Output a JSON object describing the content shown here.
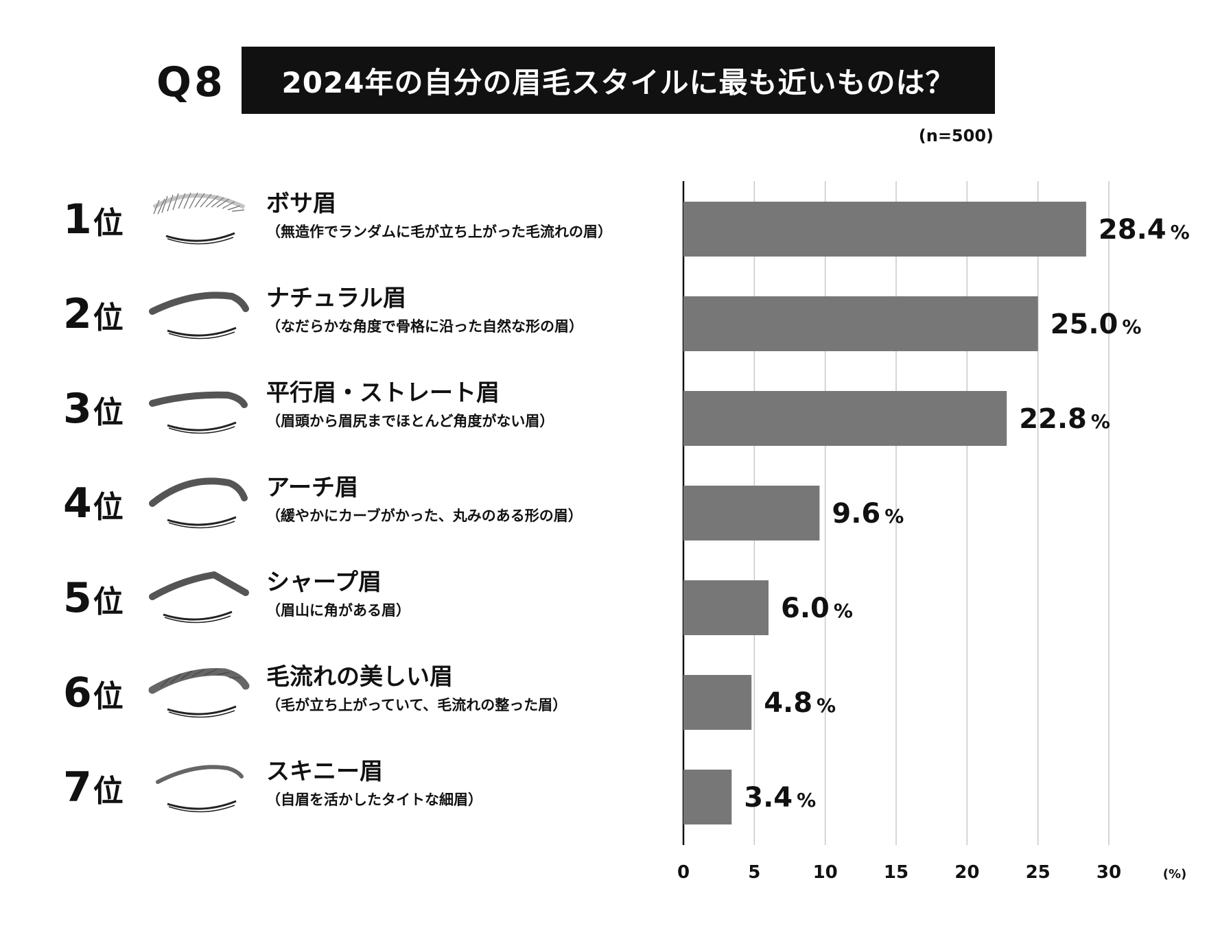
{
  "header": {
    "q_label": "Q8",
    "title": "2024年の自分の眉毛スタイルに最も近いものは？",
    "sample_note": "(n=500)"
  },
  "rows": [
    {
      "rank_num": "1",
      "rank_unit": "位",
      "name": "ボサ眉",
      "desc": "（無造作でランダムに毛が立ち上がった毛流れの眉）",
      "icon": "bushy-brow-icon"
    },
    {
      "rank_num": "2",
      "rank_unit": "位",
      "name": "ナチュラル眉",
      "desc": "（なだらかな角度で骨格に沿った自然な形の眉）",
      "icon": "natural-brow-icon"
    },
    {
      "rank_num": "3",
      "rank_unit": "位",
      "name": "平行眉・ストレート眉",
      "desc": "（眉頭から眉尻までほとんど角度がない眉）",
      "icon": "straight-brow-icon"
    },
    {
      "rank_num": "4",
      "rank_unit": "位",
      "name": "アーチ眉",
      "desc": "（緩やかにカーブがかった、丸みのある形の眉）",
      "icon": "arch-brow-icon"
    },
    {
      "rank_num": "5",
      "rank_unit": "位",
      "name": "シャープ眉",
      "desc": "（眉山に角がある眉）",
      "icon": "sharp-brow-icon"
    },
    {
      "rank_num": "6",
      "rank_unit": "位",
      "name": "毛流れの美しい眉",
      "desc": "（毛が立ち上がっていて、毛流れの整った眉）",
      "icon": "groomed-brow-icon"
    },
    {
      "rank_num": "7",
      "rank_unit": "位",
      "name": "スキニー眉",
      "desc": "（自眉を活かしたタイトな細眉）",
      "icon": "skinny-brow-icon"
    }
  ],
  "chart_data": {
    "type": "bar",
    "orientation": "horizontal",
    "title": "2024年の自分の眉毛スタイルに最も近いものは？",
    "categories": [
      "ボサ眉",
      "ナチュラル眉",
      "平行眉・ストレート眉",
      "アーチ眉",
      "シャープ眉",
      "毛流れの美しい眉",
      "スキニー眉"
    ],
    "values": [
      28.4,
      25.0,
      22.8,
      9.6,
      6.0,
      4.8,
      3.4
    ],
    "value_labels": [
      "28.4",
      "25.0",
      "22.8",
      "9.6",
      "6.0",
      "4.8",
      "3.4"
    ],
    "value_suffix": "%",
    "xlim": [
      0,
      30
    ],
    "xticks": [
      0,
      5,
      10,
      15,
      20,
      25,
      30
    ],
    "xlabel": "(%)",
    "ylabel": "",
    "grid": true,
    "colors": {
      "bar": "#777777",
      "grid": "#c8c8c8",
      "axis": "#111111"
    }
  }
}
